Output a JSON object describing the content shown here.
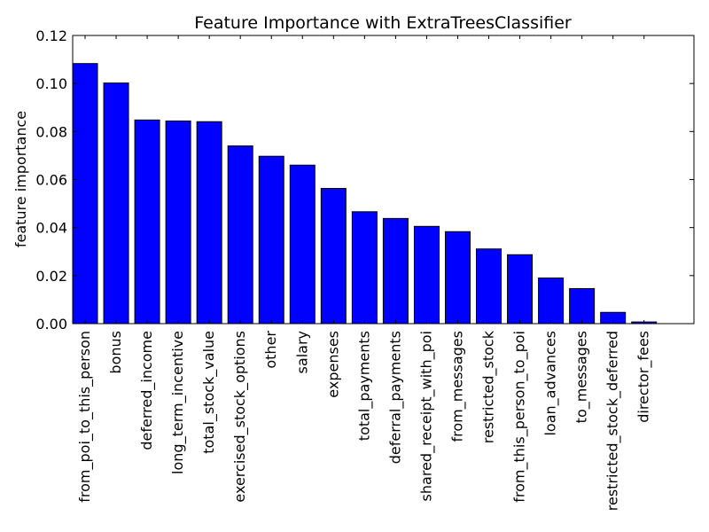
{
  "chart_data": {
    "type": "bar",
    "title": "Feature Importance with ExtraTreesClassifier",
    "xlabel": "",
    "ylabel": "feature importance",
    "ylim": [
      0,
      0.12
    ],
    "yticks": [
      "0.00",
      "0.02",
      "0.04",
      "0.06",
      "0.08",
      "0.10",
      "0.12"
    ],
    "grid": false,
    "bar_color": "#0000ff",
    "categories": [
      "from_poi_to_this_person",
      "bonus",
      "deferred_income",
      "long_term_incentive",
      "total_stock_value",
      "exercised_stock_options",
      "other",
      "salary",
      "expenses",
      "total_payments",
      "deferral_payments",
      "shared_receipt_with_poi",
      "from_messages",
      "restricted_stock",
      "from_this_person_to_poi",
      "loan_advances",
      "to_messages",
      "restricted_stock_deferred",
      "director_fees"
    ],
    "values": [
      0.1083,
      0.1002,
      0.0848,
      0.0844,
      0.0841,
      0.074,
      0.0697,
      0.066,
      0.0563,
      0.0466,
      0.0438,
      0.0405,
      0.0383,
      0.0311,
      0.0287,
      0.019,
      0.0146,
      0.0047,
      0.0007
    ]
  }
}
